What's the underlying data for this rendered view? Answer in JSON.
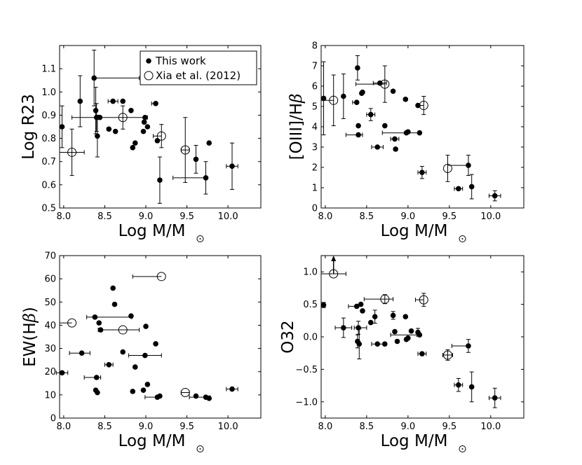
{
  "chart_data": [
    {
      "type": "scatter",
      "xlabel": "Log M/M",
      "ylabel": "Log R23",
      "xlim": [
        7.95,
        10.4
      ],
      "ylim": [
        0.5,
        1.2
      ],
      "xticks": [
        "8.0",
        "8.5",
        "9.0",
        "9.5",
        "10.0"
      ],
      "yticks": [
        "0.5",
        "0.6",
        "0.7",
        "0.8",
        "0.9",
        "1.0",
        "1.1"
      ],
      "legend": {
        "position": "top-right",
        "entries": [
          "This work",
          "Xia et al. (2012)"
        ]
      },
      "series": [
        {
          "name": "This work",
          "marker": "filled",
          "points": [
            {
              "x": 7.98,
              "y": 0.85,
              "yerr": 0.09
            },
            {
              "x": 8.2,
              "y": 0.96,
              "yerr": 0.11
            },
            {
              "x": 8.37,
              "y": 1.06,
              "yerr": 0.12,
              "xerr": [
                0.0,
                0.55
              ]
            },
            {
              "x": 8.39,
              "y": 0.92,
              "yerr": 0.1
            },
            {
              "x": 8.4,
              "y": 0.89,
              "yerr": 0.06,
              "xerr": [
                0.3,
                0.0
              ]
            },
            {
              "x": 8.41,
              "y": 0.81,
              "yerr": 0.09
            },
            {
              "x": 8.44,
              "y": 0.89
            },
            {
              "x": 8.55,
              "y": 0.84
            },
            {
              "x": 8.6,
              "y": 0.96,
              "xerr": [
                0.06,
                0.06
              ]
            },
            {
              "x": 8.63,
              "y": 0.83
            },
            {
              "x": 8.72,
              "y": 0.96
            },
            {
              "x": 8.82,
              "y": 0.92
            },
            {
              "x": 8.84,
              "y": 0.76
            },
            {
              "x": 8.87,
              "y": 0.78
            },
            {
              "x": 8.97,
              "y": 0.83
            },
            {
              "x": 8.98,
              "y": 0.87
            },
            {
              "x": 8.99,
              "y": 0.89
            },
            {
              "x": 9.02,
              "y": 0.85
            },
            {
              "x": 9.12,
              "y": 0.95,
              "xerr": [
                0.05,
                0.0
              ]
            },
            {
              "x": 9.14,
              "y": 0.79
            },
            {
              "x": 9.17,
              "y": 0.62,
              "yerr": 0.1
            },
            {
              "x": 9.61,
              "y": 0.71,
              "yerr": 0.06
            },
            {
              "x": 9.73,
              "y": 0.63,
              "yerr": 0.07,
              "xerr": [
                0.4,
                0.0
              ]
            },
            {
              "x": 9.77,
              "y": 0.78
            },
            {
              "x": 10.05,
              "y": 0.68,
              "yerr": 0.1,
              "xerr": [
                0.07,
                0.07
              ]
            }
          ]
        },
        {
          "name": "Xia et al. (2012)",
          "marker": "open",
          "points": [
            {
              "x": 8.1,
              "y": 0.74,
              "yerr": 0.1,
              "xerr": [
                0.15,
                0.15
              ]
            },
            {
              "x": 8.72,
              "y": 0.89,
              "yerr": 0.05,
              "xerr": [
                0.3,
                0.3
              ]
            },
            {
              "x": 9.19,
              "y": 0.81,
              "yerr": 0.05,
              "xerr": [
                0.1,
                0.0
              ]
            },
            {
              "x": 9.48,
              "y": 0.75,
              "yerr": 0.14,
              "xerr": [
                0.05,
                0.05
              ]
            }
          ]
        }
      ]
    },
    {
      "type": "scatter",
      "xlabel": "Log M/M",
      "ylabel": "[OIII]/H",
      "xlim": [
        7.95,
        10.4
      ],
      "ylim": [
        0,
        8
      ],
      "xticks": [
        "8.0",
        "8.5",
        "9.0",
        "9.5",
        "10.0"
      ],
      "yticks": [
        "0",
        "1",
        "2",
        "3",
        "4",
        "5",
        "6",
        "7",
        "8"
      ],
      "series": [
        {
          "name": "This work",
          "marker": "filled",
          "points": [
            {
              "x": 7.98,
              "y": 5.4,
              "yerr": 1.8
            },
            {
              "x": 8.22,
              "y": 5.5,
              "yerr": 1.1
            },
            {
              "x": 8.38,
              "y": 5.2,
              "xerr": [
                0.05,
                0.0
              ]
            },
            {
              "x": 8.39,
              "y": 6.9,
              "yerr": 0.6
            },
            {
              "x": 8.4,
              "y": 4.05
            },
            {
              "x": 8.4,
              "y": 3.6,
              "xerr": [
                0.15,
                0.05
              ]
            },
            {
              "x": 8.44,
              "y": 5.65
            },
            {
              "x": 8.45,
              "y": 5.7
            },
            {
              "x": 8.55,
              "y": 4.6,
              "yerr": 0.3,
              "xerr": [
                0.05,
                0.05
              ]
            },
            {
              "x": 8.63,
              "y": 3.0,
              "xerr": [
                0.07,
                0.07
              ]
            },
            {
              "x": 8.66,
              "y": 6.15,
              "xerr": [
                0.08,
                0.08
              ]
            },
            {
              "x": 8.72,
              "y": 4.05
            },
            {
              "x": 8.82,
              "y": 5.75
            },
            {
              "x": 8.84,
              "y": 3.4,
              "xerr": [
                0.05,
                0.05
              ]
            },
            {
              "x": 8.85,
              "y": 2.9
            },
            {
              "x": 8.97,
              "y": 5.35
            },
            {
              "x": 8.98,
              "y": 3.7
            },
            {
              "x": 9.0,
              "y": 3.75
            },
            {
              "x": 9.12,
              "y": 5.05
            },
            {
              "x": 9.14,
              "y": 3.7,
              "xerr": [
                0.45,
                0.0
              ]
            },
            {
              "x": 9.17,
              "y": 1.75,
              "yerr": 0.3,
              "xerr": [
                0.05,
                0.05
              ]
            },
            {
              "x": 9.61,
              "y": 0.95,
              "xerr": [
                0.05,
                0.05
              ]
            },
            {
              "x": 9.73,
              "y": 2.1,
              "yerr": 0.5,
              "xerr": [
                0.25,
                0.0
              ]
            },
            {
              "x": 9.77,
              "y": 1.05,
              "yerr": 0.6
            },
            {
              "x": 10.05,
              "y": 0.6,
              "yerr": 0.25,
              "xerr": [
                0.07,
                0.07
              ]
            }
          ]
        },
        {
          "name": "Xia et al. (2012)",
          "marker": "open",
          "points": [
            {
              "x": 8.1,
              "y": 5.3,
              "yerr": 1.25,
              "xerr": [
                0.15,
                0.0
              ]
            },
            {
              "x": 8.72,
              "y": 6.1,
              "yerr": 0.9,
              "xerr": [
                0.35,
                0.0
              ]
            },
            {
              "x": 9.19,
              "y": 5.05,
              "yerr": 0.45,
              "xerr": [
                0.05,
                0.0
              ]
            },
            {
              "x": 9.48,
              "y": 1.95,
              "yerr": 0.65
            }
          ]
        }
      ]
    },
    {
      "type": "scatter",
      "xlabel": "Log M/M",
      "ylabel": "EW(H",
      "xlim": [
        7.95,
        10.4
      ],
      "ylim": [
        0,
        70
      ],
      "xticks": [
        "8.0",
        "8.5",
        "9.0",
        "9.5",
        "10.0"
      ],
      "yticks": [
        "0",
        "10",
        "20",
        "30",
        "40",
        "50",
        "60",
        "70"
      ],
      "series": [
        {
          "name": "This work",
          "marker": "filled",
          "points": [
            {
              "x": 7.98,
              "y": 19.5,
              "xerr": [
                0.07,
                0.07
              ]
            },
            {
              "x": 8.22,
              "y": 28.0,
              "xerr": [
                0.15,
                0.1
              ]
            },
            {
              "x": 8.38,
              "y": 43.5,
              "xerr": [
                0.1,
                0.45
              ]
            },
            {
              "x": 8.39,
              "y": 12.0
            },
            {
              "x": 8.4,
              "y": 17.5,
              "xerr": [
                0.15,
                0.05
              ]
            },
            {
              "x": 8.41,
              "y": 11.0
            },
            {
              "x": 8.43,
              "y": 41.0
            },
            {
              "x": 8.45,
              "y": 38.0
            },
            {
              "x": 8.55,
              "y": 23.0,
              "xerr": [
                0.05,
                0.05
              ]
            },
            {
              "x": 8.6,
              "y": 56.0
            },
            {
              "x": 8.62,
              "y": 49.0
            },
            {
              "x": 8.72,
              "y": 28.5
            },
            {
              "x": 8.82,
              "y": 44.0
            },
            {
              "x": 8.84,
              "y": 11.5
            },
            {
              "x": 8.87,
              "y": 22.0
            },
            {
              "x": 8.97,
              "y": 12.0
            },
            {
              "x": 8.99,
              "y": 27.0,
              "xerr": [
                0.2,
                0.2
              ]
            },
            {
              "x": 9.0,
              "y": 39.5
            },
            {
              "x": 9.02,
              "y": 14.5
            },
            {
              "x": 9.12,
              "y": 32.0
            },
            {
              "x": 9.14,
              "y": 9.0,
              "xerr": [
                0.15,
                0.0
              ]
            },
            {
              "x": 9.17,
              "y": 9.5
            },
            {
              "x": 9.61,
              "y": 9.5
            },
            {
              "x": 9.73,
              "y": 9.0,
              "xerr": [
                0.2,
                0.05
              ]
            },
            {
              "x": 9.77,
              "y": 8.5
            },
            {
              "x": 10.05,
              "y": 12.5,
              "xerr": [
                0.07,
                0.07
              ]
            }
          ]
        },
        {
          "name": "Xia et al. (2012)",
          "marker": "open",
          "points": [
            {
              "x": 8.1,
              "y": 41.0,
              "xerr": [
                0.15,
                0.0
              ]
            },
            {
              "x": 8.72,
              "y": 38.0,
              "xerr": [
                0.3,
                0.2
              ]
            },
            {
              "x": 9.19,
              "y": 61.0,
              "xerr": [
                0.35,
                0.0
              ]
            },
            {
              "x": 9.48,
              "y": 11.0,
              "xerr": [
                0.05,
                0.05
              ]
            }
          ]
        }
      ]
    },
    {
      "type": "scatter",
      "xlabel": "Log M/M",
      "ylabel": "O32",
      "xlim": [
        7.95,
        10.4
      ],
      "ylim": [
        -1.25,
        1.25
      ],
      "xticks": [
        "8.0",
        "8.5",
        "9.0",
        "9.5",
        "10.0"
      ],
      "yticks": [
        "−1.0",
        "−0.5",
        "0.0",
        "0.5",
        "1.0"
      ],
      "series": [
        {
          "name": "This work",
          "marker": "filled",
          "points": [
            {
              "x": 7.98,
              "y": 0.49,
              "yerr": 0.04
            },
            {
              "x": 8.22,
              "y": 0.14,
              "yerr": 0.15,
              "xerr": [
                0.1,
                0.1
              ]
            },
            {
              "x": 8.38,
              "y": 0.47,
              "xerr": [
                0.1,
                0.0
              ]
            },
            {
              "x": 8.39,
              "y": -0.07,
              "yerr": 0.1
            },
            {
              "x": 8.4,
              "y": 0.14,
              "yerr": 0.1,
              "xerr": [
                0.05,
                0.1
              ]
            },
            {
              "x": 8.41,
              "y": -0.11,
              "yerr": 0.23
            },
            {
              "x": 8.43,
              "y": 0.5
            },
            {
              "x": 8.45,
              "y": 0.4
            },
            {
              "x": 8.55,
              "y": 0.22
            },
            {
              "x": 8.6,
              "y": 0.31,
              "yerr": 0.1
            },
            {
              "x": 8.63,
              "y": -0.11,
              "xerr": [
                0.07,
                0.07
              ]
            },
            {
              "x": 8.72,
              "y": -0.11
            },
            {
              "x": 8.82,
              "y": 0.33,
              "yerr": 0.06
            },
            {
              "x": 8.84,
              "y": 0.08
            },
            {
              "x": 8.87,
              "y": -0.07
            },
            {
              "x": 8.97,
              "y": 0.31
            },
            {
              "x": 8.98,
              "y": -0.04
            },
            {
              "x": 9.0,
              "y": -0.02
            },
            {
              "x": 9.04,
              "y": 0.09
            },
            {
              "x": 9.12,
              "y": 0.07,
              "yerr": 0.06
            },
            {
              "x": 9.14,
              "y": 0.03,
              "xerr": [
                0.35,
                0.0
              ]
            },
            {
              "x": 9.17,
              "y": -0.26,
              "xerr": [
                0.05,
                0.05
              ]
            },
            {
              "x": 9.61,
              "y": -0.74,
              "yerr": 0.1,
              "xerr": [
                0.05,
                0.05
              ]
            },
            {
              "x": 9.73,
              "y": -0.14,
              "yerr": 0.1,
              "xerr": [
                0.2,
                0.0
              ]
            },
            {
              "x": 9.77,
              "y": -0.77,
              "yerr": 0.23
            },
            {
              "x": 10.05,
              "y": -0.94,
              "yerr": 0.15,
              "xerr": [
                0.07,
                0.07
              ]
            }
          ]
        },
        {
          "name": "Xia et al. (2012)",
          "marker": "open",
          "points": [
            {
              "x": 8.1,
              "y": 0.97,
              "xerr": [
                0.15,
                0.15
              ],
              "upper_arrow": true
            },
            {
              "x": 8.72,
              "y": 0.58,
              "yerr": 0.07,
              "xerr": [
                0.25,
                0.1
              ]
            },
            {
              "x": 9.19,
              "y": 0.57,
              "yerr": 0.1,
              "xerr": [
                0.1,
                0.0
              ]
            },
            {
              "x": 9.48,
              "y": -0.28,
              "yerr": 0.08,
              "xerr": [
                0.06,
                0.06
              ]
            }
          ]
        }
      ]
    }
  ]
}
